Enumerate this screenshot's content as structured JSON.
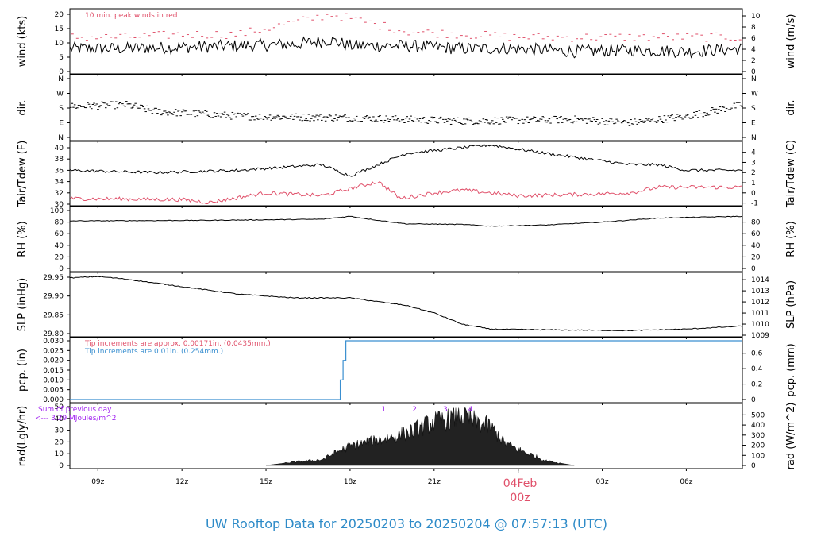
{
  "title": "UW Rooftop Data for 20250203  to  20250204 @ 07:57:13  (UTC)",
  "colors": {
    "title": "#2e8bc8",
    "red": "#e0506a",
    "blue": "#3a8fd0",
    "purple": "#a020f0",
    "black": "#000000"
  },
  "time_axis": {
    "labels": [
      "09z",
      "12z",
      "15z",
      "18z",
      "21z",
      "03z",
      "06z"
    ],
    "date_label": "04Feb",
    "date_hour": "00z"
  },
  "panels": {
    "wind": {
      "left_label": "wind (kts)",
      "right_label": "wind (m/s)",
      "left_ticks": [
        "0",
        "5",
        "10",
        "15",
        "20"
      ],
      "right_ticks": [
        "0",
        "2",
        "4",
        "6",
        "8",
        "10"
      ],
      "note": "10 min. peak winds in red"
    },
    "dir": {
      "left_label": "dir.",
      "right_label": "dir.",
      "ticks": [
        "N",
        "E",
        "S",
        "W",
        "N"
      ]
    },
    "temp": {
      "left_label": "Tair/Tdew (F)",
      "right_label": "Tair/Tdew (C)",
      "left_ticks": [
        "30",
        "32",
        "34",
        "36",
        "38",
        "40"
      ],
      "right_ticks": [
        "-1",
        "0",
        "1",
        "2",
        "3",
        "4"
      ]
    },
    "rh": {
      "left_label": "RH (%)",
      "right_label": "RH (%)",
      "left_ticks": [
        "0",
        "20",
        "40",
        "60",
        "80",
        "100"
      ],
      "right_ticks": [
        "0",
        "20",
        "40",
        "60",
        "80"
      ]
    },
    "slp": {
      "left_label": "SLP (inHg)",
      "right_label": "SLP (hPa)",
      "left_ticks": [
        "29.80",
        "29.85",
        "29.90",
        "29.95"
      ],
      "right_ticks": [
        "1009",
        "1010",
        "1011",
        "1012",
        "1013",
        "1014"
      ]
    },
    "pcp": {
      "left_label": "pcp. (in)",
      "right_label": "pcp. (mm)",
      "left_ticks": [
        "0.000",
        "0.005",
        "0.010",
        "0.015",
        "0.020",
        "0.025",
        "0.030"
      ],
      "right_ticks": [
        "0",
        "0.2",
        "0.4",
        "0.6"
      ],
      "note_red": "Tip increments are approx. 0.00171in. (0.0435mm.)",
      "note_blue": "Tip increments are 0.01in. (0.254mm.)"
    },
    "rad": {
      "left_label": "rad(Lgly/hr)",
      "right_label": "rad (W/m^2)",
      "left_ticks": [
        "0",
        "10",
        "20",
        "30",
        "40",
        "50"
      ],
      "right_ticks": [
        "0",
        "100",
        "200",
        "300",
        "400",
        "500"
      ],
      "sum_line1": "Sum of previous day",
      "sum_line2": "<--- 3.29 MJoules/m^2",
      "markers": [
        "1",
        "2",
        "3",
        "4"
      ]
    }
  },
  "chart_data": {
    "type": "line",
    "x_unit": "hours UTC from 2025-02-03 08:00",
    "x_range": [
      0,
      24
    ],
    "series": [
      {
        "name": "wind speed",
        "unit": "kts",
        "points": [
          [
            0,
            8
          ],
          [
            2,
            8
          ],
          [
            4,
            8.5
          ],
          [
            6,
            9
          ],
          [
            8,
            9.5
          ],
          [
            9.3,
            11
          ],
          [
            10,
            9
          ],
          [
            12,
            9
          ],
          [
            14,
            8
          ],
          [
            16,
            8
          ],
          [
            18,
            7
          ],
          [
            20,
            7.5
          ],
          [
            22,
            7
          ],
          [
            24,
            8
          ]
        ]
      },
      {
        "name": "10 min. peak winds",
        "unit": "kts",
        "points": [
          [
            0,
            12
          ],
          [
            2,
            12
          ],
          [
            4,
            13
          ],
          [
            6,
            13
          ],
          [
            9.3,
            20
          ],
          [
            12,
            14
          ],
          [
            16,
            12
          ],
          [
            20,
            12
          ],
          [
            24,
            12
          ]
        ]
      },
      {
        "name": "direction",
        "unit": "deg",
        "points": [
          [
            0,
            190
          ],
          [
            2,
            200
          ],
          [
            3,
            160
          ],
          [
            6,
            130
          ],
          [
            10,
            120
          ],
          [
            14,
            100
          ],
          [
            18,
            110
          ],
          [
            20,
            90
          ],
          [
            22,
            130
          ],
          [
            24,
            200
          ]
        ]
      },
      {
        "name": "Tair",
        "unit": "F",
        "points": [
          [
            0,
            36
          ],
          [
            3,
            35.6
          ],
          [
            6,
            36
          ],
          [
            9,
            37
          ],
          [
            10,
            35
          ],
          [
            12,
            39
          ],
          [
            14,
            40
          ],
          [
            15,
            40.5
          ],
          [
            17,
            39
          ],
          [
            20,
            37
          ],
          [
            21,
            37
          ],
          [
            22,
            36
          ],
          [
            24,
            36
          ]
        ]
      },
      {
        "name": "Tdew",
        "unit": "F",
        "points": [
          [
            0,
            31
          ],
          [
            4,
            30.8
          ],
          [
            5,
            30.3
          ],
          [
            7,
            32
          ],
          [
            9,
            31.5
          ],
          [
            11,
            34
          ],
          [
            11.8,
            31
          ],
          [
            13,
            32
          ],
          [
            14,
            32.5
          ],
          [
            16,
            31.5
          ],
          [
            18,
            31.7
          ],
          [
            20,
            32
          ],
          [
            21,
            33
          ],
          [
            24,
            33
          ]
        ]
      },
      {
        "name": "RH",
        "unit": "%",
        "points": [
          [
            0,
            82
          ],
          [
            5,
            83
          ],
          [
            9,
            85
          ],
          [
            10,
            90
          ],
          [
            11,
            83
          ],
          [
            12,
            77
          ],
          [
            14,
            76
          ],
          [
            15,
            73
          ],
          [
            17,
            75
          ],
          [
            19,
            80
          ],
          [
            21,
            87
          ],
          [
            24,
            90
          ]
        ]
      },
      {
        "name": "SLP",
        "unit": "inHg",
        "points": [
          [
            0,
            29.948
          ],
          [
            1,
            29.952
          ],
          [
            2,
            29.945
          ],
          [
            4,
            29.925
          ],
          [
            6,
            29.905
          ],
          [
            8,
            29.895
          ],
          [
            10,
            29.895
          ],
          [
            12,
            29.875
          ],
          [
            13,
            29.855
          ],
          [
            14,
            29.825
          ],
          [
            15,
            29.812
          ],
          [
            17,
            29.81
          ],
          [
            20,
            29.808
          ],
          [
            22,
            29.812
          ],
          [
            24,
            29.82
          ]
        ]
      },
      {
        "name": "pcp",
        "unit": "in",
        "points": [
          [
            0,
            0
          ],
          [
            9.6,
            0
          ],
          [
            9.65,
            0.01
          ],
          [
            9.75,
            0.02
          ],
          [
            9.85,
            0.03
          ],
          [
            24,
            0.03
          ]
        ]
      },
      {
        "name": "rad",
        "unit": "Lgly/hr",
        "points": [
          [
            7,
            0
          ],
          [
            8,
            3
          ],
          [
            9,
            5
          ],
          [
            9.7,
            14
          ],
          [
            10.2,
            18
          ],
          [
            11,
            22
          ],
          [
            12,
            28
          ],
          [
            13,
            38
          ],
          [
            13.5,
            40
          ],
          [
            14,
            44
          ],
          [
            14.5,
            38
          ],
          [
            15,
            34
          ],
          [
            15.5,
            20
          ],
          [
            16,
            14
          ],
          [
            17,
            4
          ],
          [
            18,
            0
          ],
          [
            24,
            0
          ]
        ]
      }
    ],
    "xlabel": "",
    "legend": "none"
  }
}
